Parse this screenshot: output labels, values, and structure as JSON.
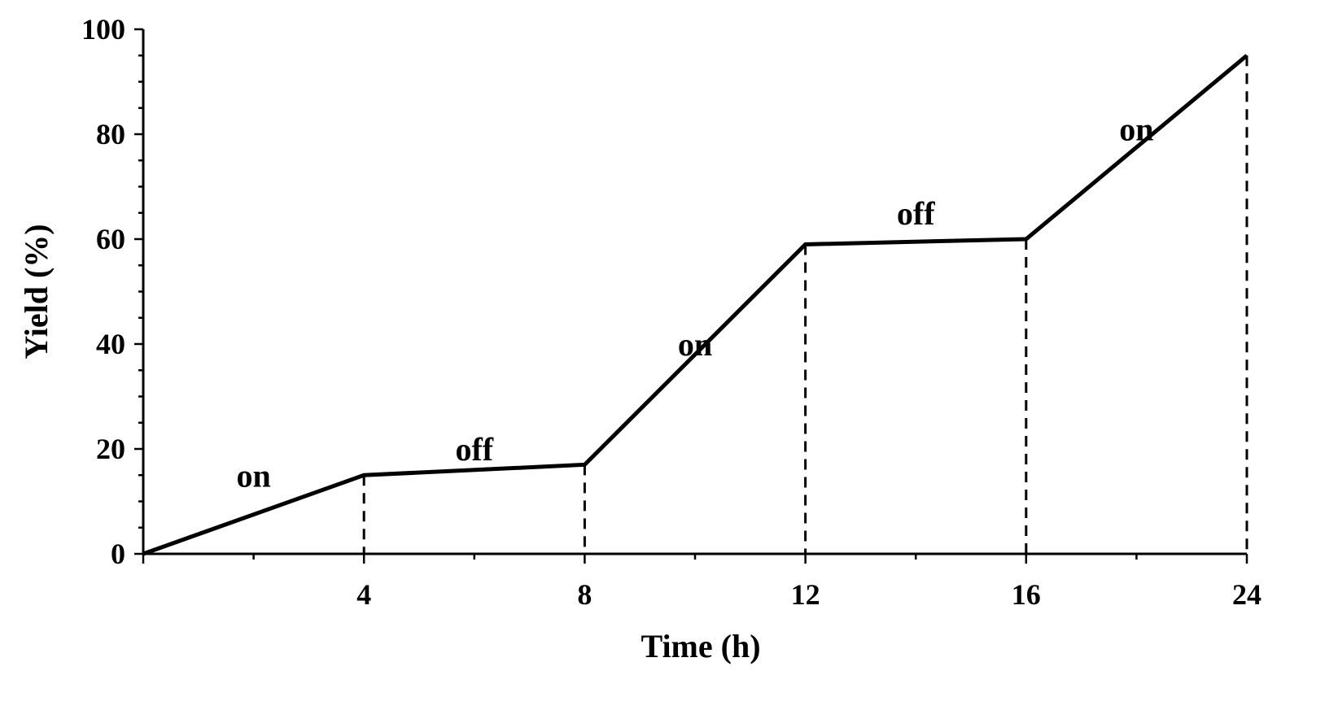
{
  "chart_data": {
    "type": "line",
    "title": "",
    "xlabel": "Time (h)",
    "ylabel": "Yield (%)",
    "ylim": [
      0,
      100
    ],
    "y_ticks": [
      "0",
      "20",
      "40",
      "60",
      "80",
      "100"
    ],
    "x_categories": [
      "",
      "4",
      "8",
      "12",
      "16",
      "24"
    ],
    "series": [
      {
        "points": [
          {
            "x": "0",
            "y": 0
          },
          {
            "x": "4",
            "y": 15
          },
          {
            "x": "8",
            "y": 17
          },
          {
            "x": "12",
            "y": 59
          },
          {
            "x": "16",
            "y": 60
          },
          {
            "x": "24",
            "y": 95
          }
        ]
      }
    ],
    "annotations": [
      {
        "text": "on",
        "between": [
          "0",
          "4"
        ],
        "y": 15
      },
      {
        "text": "off",
        "between": [
          "4",
          "8"
        ],
        "y": 20
      },
      {
        "text": "on",
        "between": [
          "8",
          "12"
        ],
        "y": 40
      },
      {
        "text": "off",
        "between": [
          "12",
          "16"
        ],
        "y": 65
      },
      {
        "text": "on",
        "between": [
          "16",
          "24"
        ],
        "y": 81
      }
    ],
    "grid": false,
    "legend": "none",
    "line_color": "#000000"
  }
}
